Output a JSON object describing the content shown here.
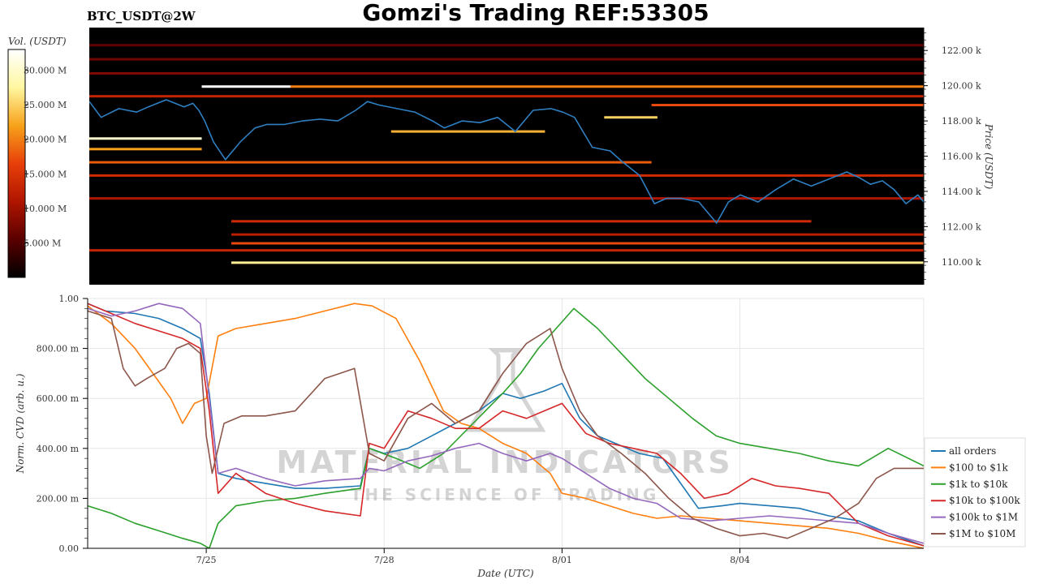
{
  "header": {
    "pair_label": "BTC_USDT@2W",
    "title": "Gomzi's Trading REF:53305"
  },
  "watermark": {
    "line1": "MATERIAL INDICATORS",
    "line2": "THE SCIENCE OF TRADING"
  },
  "colorbar": {
    "label": "Vol. (USDT)",
    "ticks": [
      "30.000 M",
      "25.000 M",
      "20.000 M",
      "15.000 M",
      "10.000 M",
      "5.000 M"
    ],
    "tick_values": [
      30,
      25,
      20,
      15,
      10,
      5
    ],
    "range": [
      0,
      33
    ],
    "stops": [
      "#000000",
      "#5a0000",
      "#b01500",
      "#e8400a",
      "#f7a21a",
      "#fff7a0",
      "#ffffff"
    ]
  },
  "chart_data": [
    {
      "type": "heatmap",
      "name": "orderbook-heatmap",
      "ylabel": "Price (USDT)",
      "yticks": [
        "110.00 k",
        "112.00 k",
        "114.00 k",
        "116.00 k",
        "118.00 k",
        "120.00 k",
        "122.00 k"
      ],
      "ytick_values": [
        110000,
        112000,
        114000,
        116000,
        118000,
        120000,
        122000
      ],
      "ylim": [
        108700,
        123300
      ],
      "xlim": [
        0,
        14.1
      ],
      "price_line_color": "#2f7fc1",
      "price": {
        "x": [
          0,
          0.2,
          0.5,
          0.8,
          1.0,
          1.3,
          1.6,
          1.75,
          1.85,
          1.95,
          2.1,
          2.3,
          2.55,
          2.8,
          3.0,
          3.3,
          3.6,
          3.9,
          4.2,
          4.5,
          4.7,
          4.9,
          5.2,
          5.5,
          5.8,
          6.0,
          6.3,
          6.6,
          6.9,
          7.2,
          7.5,
          7.8,
          8.0,
          8.2,
          8.5,
          8.8,
          9.0,
          9.3,
          9.55,
          9.75,
          10.0,
          10.3,
          10.6,
          10.8,
          11.0,
          11.3,
          11.6,
          11.9,
          12.2,
          12.5,
          12.8,
          13.0,
          13.2,
          13.4,
          13.6,
          13.8,
          14.0,
          14.1
        ],
        "y": [
          119100,
          118200,
          118700,
          118500,
          118800,
          119200,
          118800,
          119000,
          118600,
          118000,
          116800,
          115800,
          116800,
          117600,
          117800,
          117800,
          118000,
          118100,
          118000,
          118600,
          119100,
          118900,
          118700,
          118500,
          118000,
          117600,
          118000,
          117900,
          118200,
          117400,
          118600,
          118700,
          118500,
          118200,
          116500,
          116300,
          115700,
          114900,
          113300,
          113600,
          113600,
          113400,
          112200,
          113400,
          113800,
          113400,
          114100,
          114700,
          114300,
          114700,
          115100,
          114800,
          114400,
          114600,
          114100,
          113300,
          113800,
          113400
        ]
      },
      "bands": [
        {
          "y": 109950,
          "x0": 2.4,
          "x1": 14.1,
          "v": 27
        },
        {
          "y": 110650,
          "x0": 0,
          "x1": 14.1,
          "v": 13
        },
        {
          "y": 111050,
          "x0": 2.4,
          "x1": 14.1,
          "v": 17
        },
        {
          "y": 111550,
          "x0": 2.4,
          "x1": 14.1,
          "v": 12
        },
        {
          "y": 112300,
          "x0": 2.4,
          "x1": 12.2,
          "v": 14
        },
        {
          "y": 113600,
          "x0": 0,
          "x1": 14.1,
          "v": 11
        },
        {
          "y": 114900,
          "x0": 0,
          "x1": 14.1,
          "v": 14
        },
        {
          "y": 115650,
          "x0": 0,
          "x1": 9.5,
          "v": 18
        },
        {
          "y": 116400,
          "x0": 0,
          "x1": 1.9,
          "v": 22
        },
        {
          "y": 117000,
          "x0": 0,
          "x1": 1.9,
          "v": 30
        },
        {
          "y": 117400,
          "x0": 5.1,
          "x1": 7.7,
          "v": 23
        },
        {
          "y": 118200,
          "x0": 8.7,
          "x1": 9.6,
          "v": 25
        },
        {
          "y": 118900,
          "x0": 9.5,
          "x1": 14.1,
          "v": 17
        },
        {
          "y": 119400,
          "x0": 0,
          "x1": 14.1,
          "v": 13
        },
        {
          "y": 119950,
          "x0": 1.9,
          "x1": 3.4,
          "v": 33
        },
        {
          "y": 119950,
          "x0": 3.4,
          "x1": 14.1,
          "v": 20
        },
        {
          "y": 120700,
          "x0": 0,
          "x1": 14.1,
          "v": 8
        },
        {
          "y": 121500,
          "x0": 0,
          "x1": 14.1,
          "v": 7
        },
        {
          "y": 122300,
          "x0": 0,
          "x1": 14.1,
          "v": 6
        }
      ]
    },
    {
      "type": "line",
      "name": "cvd-chart",
      "xlabel": "Date (UTC)",
      "ylabel": "Norm. CVD (arb. u.)",
      "xticks": [
        "7/25",
        "7/28",
        "8/01",
        "8/04"
      ],
      "xtick_values": [
        2,
        5,
        8,
        11
      ],
      "xlim": [
        0,
        14.1
      ],
      "yticks": [
        "0.00",
        "200.00 m",
        "400.00 m",
        "600.00 m",
        "800.00 m",
        "1.00"
      ],
      "ytick_values": [
        0,
        0.2,
        0.4,
        0.6,
        0.8,
        1.0
      ],
      "ylim": [
        0,
        1
      ],
      "grid": true,
      "legend_position": "bottom-right",
      "series": [
        {
          "name": "all orders",
          "color": "#1f77b4",
          "x": [
            0,
            0.3,
            0.8,
            1.2,
            1.6,
            1.9,
            2.05,
            2.2,
            2.5,
            3.0,
            3.5,
            4.0,
            4.6,
            4.75,
            5.0,
            5.4,
            5.8,
            6.2,
            6.6,
            7.0,
            7.3,
            7.7,
            8.0,
            8.3,
            8.6,
            8.9,
            9.3,
            9.7,
            10.0,
            10.3,
            10.7,
            11.0,
            11.5,
            12.0,
            12.5,
            13.0,
            13.5,
            14.1
          ],
          "y": [
            0.98,
            0.95,
            0.94,
            0.92,
            0.88,
            0.84,
            0.62,
            0.3,
            0.28,
            0.26,
            0.24,
            0.24,
            0.25,
            0.4,
            0.38,
            0.4,
            0.45,
            0.5,
            0.55,
            0.62,
            0.6,
            0.63,
            0.66,
            0.52,
            0.45,
            0.42,
            0.38,
            0.36,
            0.26,
            0.16,
            0.17,
            0.18,
            0.17,
            0.16,
            0.13,
            0.11,
            0.06,
            0.01
          ]
        },
        {
          "name": "$100 to $1k",
          "color": "#ff7f0e",
          "x": [
            0,
            0.4,
            0.8,
            1.1,
            1.4,
            1.6,
            1.8,
            2.0,
            2.2,
            2.5,
            3.0,
            3.5,
            4.0,
            4.5,
            4.8,
            5.2,
            5.6,
            6.0,
            6.3,
            6.6,
            7.0,
            7.4,
            7.8,
            8.0,
            8.4,
            8.8,
            9.2,
            9.6,
            10.0,
            10.5,
            11.0,
            11.5,
            12.0,
            12.5,
            13.0,
            13.5,
            14.1
          ],
          "y": [
            0.97,
            0.9,
            0.8,
            0.7,
            0.6,
            0.5,
            0.58,
            0.6,
            0.85,
            0.88,
            0.9,
            0.92,
            0.95,
            0.98,
            0.97,
            0.92,
            0.75,
            0.55,
            0.5,
            0.48,
            0.42,
            0.38,
            0.3,
            0.22,
            0.2,
            0.17,
            0.14,
            0.12,
            0.13,
            0.12,
            0.11,
            0.1,
            0.09,
            0.08,
            0.06,
            0.03,
            0.0
          ]
        },
        {
          "name": "$1k to $10k",
          "color": "#2ca02c",
          "x": [
            0,
            0.4,
            0.8,
            1.2,
            1.6,
            1.9,
            2.05,
            2.2,
            2.5,
            3.0,
            3.5,
            4.0,
            4.6,
            4.75,
            5.2,
            5.6,
            6.0,
            6.5,
            7.0,
            7.3,
            7.6,
            7.9,
            8.2,
            8.6,
            9.0,
            9.4,
            9.8,
            10.2,
            10.6,
            11.0,
            11.5,
            12.0,
            12.5,
            13.0,
            13.5,
            14.1
          ],
          "y": [
            0.17,
            0.14,
            0.1,
            0.07,
            0.04,
            0.02,
            0.0,
            0.1,
            0.17,
            0.19,
            0.2,
            0.22,
            0.24,
            0.4,
            0.36,
            0.32,
            0.38,
            0.5,
            0.62,
            0.7,
            0.8,
            0.88,
            0.96,
            0.88,
            0.78,
            0.68,
            0.6,
            0.52,
            0.45,
            0.42,
            0.4,
            0.38,
            0.35,
            0.33,
            0.4,
            0.33
          ]
        },
        {
          "name": "$10k to $100k",
          "color": "#d62728",
          "x": [
            0,
            0.4,
            0.8,
            1.2,
            1.6,
            1.9,
            2.05,
            2.2,
            2.5,
            3.0,
            3.5,
            4.0,
            4.6,
            4.75,
            5.0,
            5.4,
            5.8,
            6.2,
            6.6,
            7.0,
            7.4,
            7.8,
            8.0,
            8.4,
            8.8,
            9.2,
            9.6,
            10.0,
            10.4,
            10.8,
            11.2,
            11.6,
            12.0,
            12.5,
            13.0,
            13.5,
            14.1
          ],
          "y": [
            0.98,
            0.94,
            0.9,
            0.87,
            0.84,
            0.8,
            0.55,
            0.22,
            0.3,
            0.22,
            0.18,
            0.15,
            0.13,
            0.42,
            0.4,
            0.55,
            0.52,
            0.48,
            0.48,
            0.55,
            0.52,
            0.56,
            0.58,
            0.46,
            0.42,
            0.4,
            0.38,
            0.3,
            0.2,
            0.22,
            0.28,
            0.25,
            0.24,
            0.22,
            0.1,
            0.05,
            0.01
          ]
        },
        {
          "name": "$100k to $1M",
          "color": "#9467bd",
          "x": [
            0,
            0.4,
            0.8,
            1.2,
            1.6,
            1.9,
            2.05,
            2.2,
            2.5,
            3.0,
            3.5,
            4.0,
            4.6,
            4.75,
            5.0,
            5.4,
            5.8,
            6.2,
            6.6,
            7.0,
            7.4,
            7.8,
            8.0,
            8.4,
            8.8,
            9.2,
            9.6,
            10.0,
            10.5,
            11.0,
            11.5,
            12.0,
            12.5,
            13.0,
            13.5,
            14.1
          ],
          "y": [
            0.96,
            0.93,
            0.95,
            0.98,
            0.96,
            0.9,
            0.6,
            0.3,
            0.32,
            0.28,
            0.25,
            0.27,
            0.28,
            0.32,
            0.31,
            0.35,
            0.37,
            0.4,
            0.42,
            0.38,
            0.35,
            0.38,
            0.36,
            0.3,
            0.24,
            0.2,
            0.18,
            0.12,
            0.11,
            0.12,
            0.13,
            0.12,
            0.11,
            0.1,
            0.06,
            0.02
          ]
        },
        {
          "name": "$1M to $10M",
          "color": "#8c564b",
          "x": [
            0,
            0.4,
            0.6,
            0.8,
            1.0,
            1.3,
            1.5,
            1.7,
            1.9,
            2.0,
            2.1,
            2.3,
            2.6,
            3.0,
            3.5,
            4.0,
            4.5,
            4.75,
            5.0,
            5.4,
            5.8,
            6.2,
            6.6,
            7.0,
            7.4,
            7.8,
            8.0,
            8.3,
            8.6,
            9.0,
            9.4,
            9.8,
            10.2,
            10.6,
            11.0,
            11.4,
            11.8,
            12.2,
            12.6,
            13.0,
            13.3,
            13.6,
            14.1
          ],
          "y": [
            0.95,
            0.92,
            0.72,
            0.65,
            0.68,
            0.72,
            0.8,
            0.82,
            0.78,
            0.45,
            0.3,
            0.5,
            0.53,
            0.53,
            0.55,
            0.68,
            0.72,
            0.38,
            0.35,
            0.52,
            0.58,
            0.5,
            0.55,
            0.7,
            0.82,
            0.88,
            0.72,
            0.55,
            0.45,
            0.38,
            0.3,
            0.2,
            0.12,
            0.08,
            0.05,
            0.06,
            0.04,
            0.08,
            0.12,
            0.18,
            0.28,
            0.32,
            0.32
          ]
        }
      ]
    }
  ]
}
